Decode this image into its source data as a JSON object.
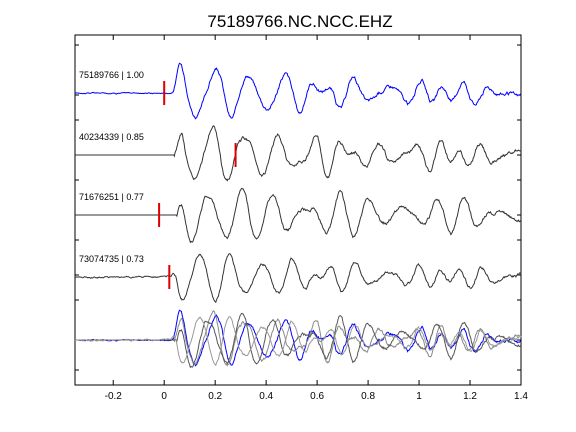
{
  "chart_data": {
    "type": "line",
    "title": "75189766.NC.NCC.EHZ",
    "xlabel": "",
    "ylabel": "",
    "xlim": [
      -0.35,
      1.4
    ],
    "x_ticks": [
      -0.2,
      0,
      0.2,
      0.4,
      0.6,
      0.8,
      1,
      1.2,
      1.4
    ],
    "x_tick_labels": [
      "-0.2",
      "0",
      "0.2",
      "0.4",
      "0.6",
      "0.8",
      "1",
      "1.2",
      "1.4"
    ],
    "grid": false,
    "legend": "none",
    "series": [
      {
        "label": "75189766 | 1.00",
        "color": "#0000ff",
        "pick_time": 0.0,
        "pre_noise": 0.06,
        "onset": 0.03,
        "freq": 7.3,
        "phase": 0.2,
        "amp": 1.0,
        "decay": 1.6,
        "coda": 0.35,
        "coda_freq": 11.5
      },
      {
        "label": "40234339 | 0.85",
        "color": "#333333",
        "pick_time": 0.28,
        "pre_noise": 0.0,
        "onset": 0.04,
        "freq": 7.6,
        "phase": 0.9,
        "amp": 1.0,
        "decay": 1.4,
        "coda": 0.38,
        "coda_freq": 12.5
      },
      {
        "label": "71676251 | 0.77",
        "color": "#333333",
        "pick_time": -0.02,
        "pre_noise": 0.0,
        "onset": 0.05,
        "freq": 7.9,
        "phase": 1.7,
        "amp": 1.0,
        "decay": 1.3,
        "coda": 0.42,
        "coda_freq": 10.5
      },
      {
        "label": "73074735 | 0.73",
        "color": "#333333",
        "pick_time": 0.02,
        "pre_noise": 0.08,
        "onset": 0.03,
        "freq": 8.1,
        "phase": 2.4,
        "amp": 0.85,
        "decay": 1.5,
        "coda": 0.38,
        "coda_freq": 12.0
      }
    ],
    "stack_colors": [
      "#0000ff",
      "#888888",
      "#555555",
      "#999999"
    ],
    "pick_color": "#dd0000"
  }
}
